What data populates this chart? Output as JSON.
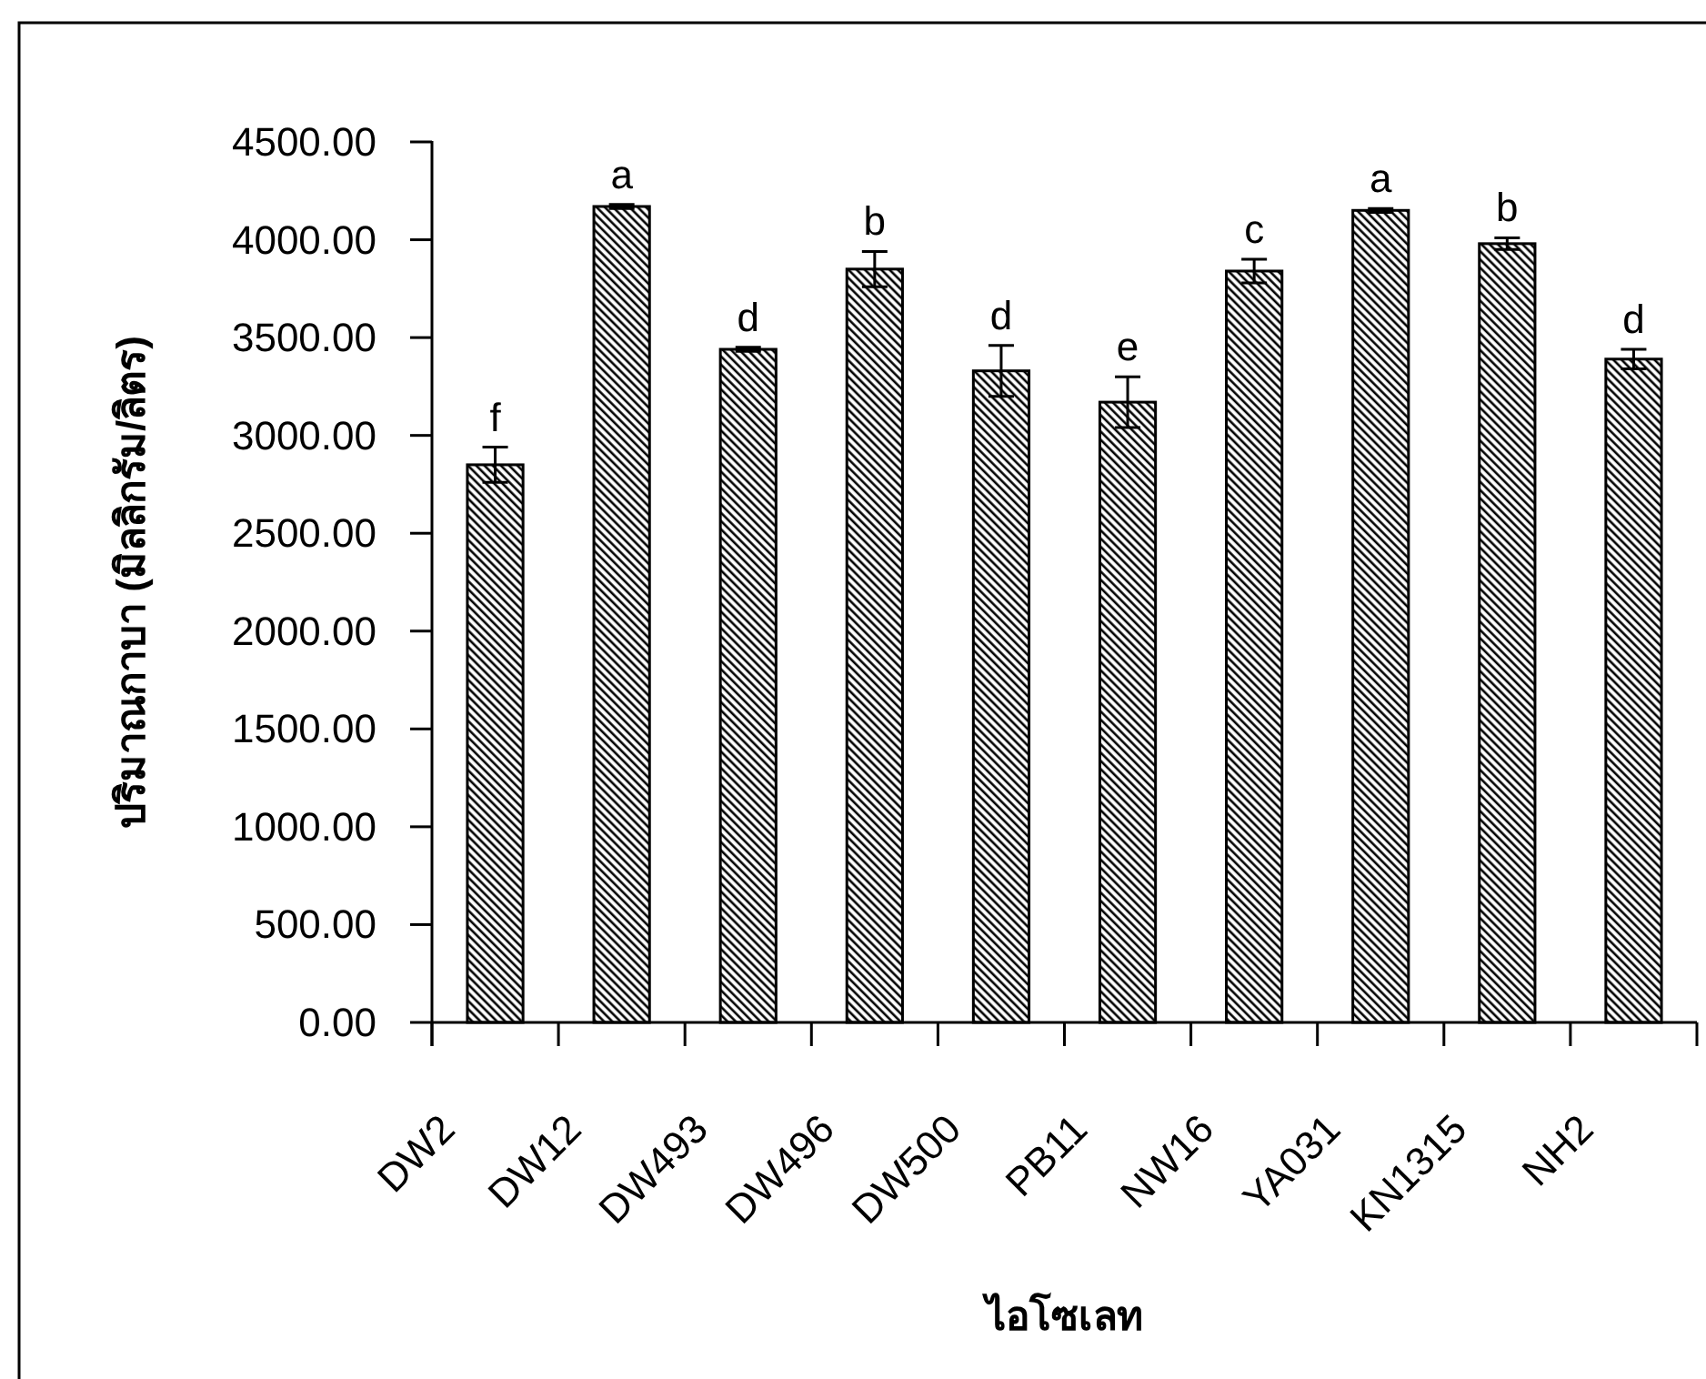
{
  "chart_data": {
    "type": "bar",
    "xlabel": "ไอโซเลท",
    "ylabel": "ปริมาณกาบา (มิลลิกรัม/ลิตร)",
    "categories": [
      "DW2",
      "DW12",
      "DW493",
      "DW496",
      "DW500",
      "PB11",
      "NW16",
      "YA031",
      "KN1315",
      "NH2"
    ],
    "values": [
      2850,
      4170,
      3440,
      3850,
      3330,
      3170,
      3840,
      4150,
      3980,
      3390
    ],
    "errors": [
      90,
      10,
      10,
      90,
      130,
      130,
      60,
      10,
      30,
      50
    ],
    "color": "#000000",
    "ylim": [
      0,
      4500
    ],
    "yticks": [
      {
        "value": 0,
        "label": "0.00"
      },
      {
        "value": 500,
        "label": "500.00"
      },
      {
        "value": 1000,
        "label": "1000.00"
      },
      {
        "value": 1500,
        "label": "1500.00"
      },
      {
        "value": 2000,
        "label": "2000.00"
      },
      {
        "value": 2500,
        "label": "2500.00"
      },
      {
        "value": 3000,
        "label": "3000.00"
      },
      {
        "value": 3500,
        "label": "3500.00"
      },
      {
        "value": 4000,
        "label": "4000.00"
      },
      {
        "value": 4500,
        "label": "4500.00"
      }
    ],
    "annotations": [
      "f",
      "a",
      "d",
      "b",
      "d",
      "e",
      "c",
      "a",
      "b",
      "d"
    ]
  }
}
